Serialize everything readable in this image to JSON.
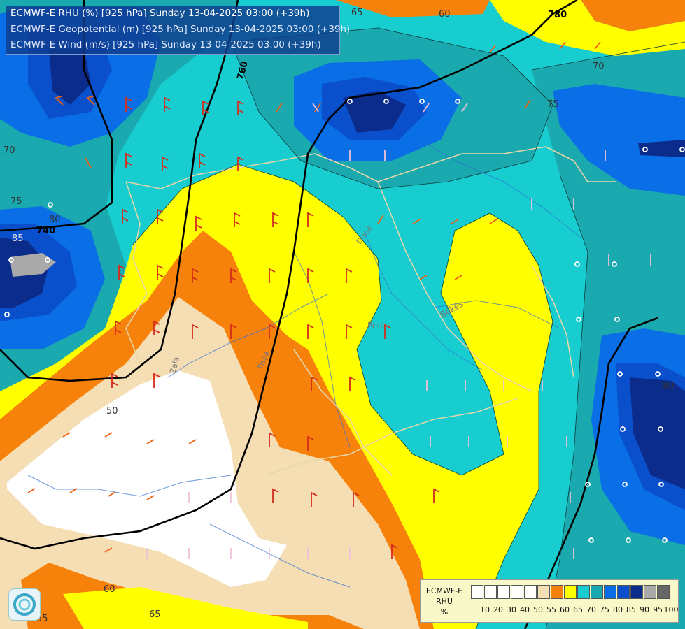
{
  "header": {
    "line1": "ECMWF-E RHU (%) [925 hPa] Sunday 13-04-2025 03:00 (+39h)",
    "line2": "ECMWF-E Geopotential (m) [925 hPa] Sunday 13-04-2025 03:00 (+39h)",
    "line3": "ECMWF-E Wind (m/s) [925 hPa] Sunday 13-04-2025 03:00 (+39h)"
  },
  "geopotential_labels": [
    "780",
    "760",
    "740"
  ],
  "rhu_contour_labels": [
    "65",
    "60",
    "70",
    "75",
    "70",
    "75",
    "80",
    "85",
    "50",
    "60",
    "65",
    "55",
    "80"
  ],
  "place_labels": [
    "Pest",
    "Békés",
    "Tisza",
    "Duna",
    "Zala"
  ],
  "legend": {
    "title_line1": "ECMWF-E",
    "title_line2": "RHU",
    "unit": "%",
    "ticks": [
      "10",
      "20",
      "30",
      "40",
      "50",
      "55",
      "60",
      "65",
      "70",
      "75",
      "80",
      "85",
      "90",
      "95",
      "100"
    ],
    "colors": [
      "#ffffff",
      "#ffffff",
      "#ffffff",
      "#ffffff",
      "#ffffff",
      "#f5deb3",
      "#f6820c",
      "#ffff00",
      "#17cdd0",
      "#1aa9ae",
      "#0a6ee6",
      "#0a4fcc",
      "#0b2c8a",
      "#a9a9a9",
      "#666666"
    ]
  },
  "palette": {
    "sea_55": "#f5deb3",
    "rhu_60": "#f6820c",
    "rhu_65": "#ffff00",
    "rhu_70": "#17cdd0",
    "rhu_75": "#1aa9ae",
    "rhu_80": "#0a6ee6",
    "rhu_85": "#0a4fcc",
    "rhu_90": "#0b2c8a",
    "rhu_95": "#a9a9a9"
  }
}
